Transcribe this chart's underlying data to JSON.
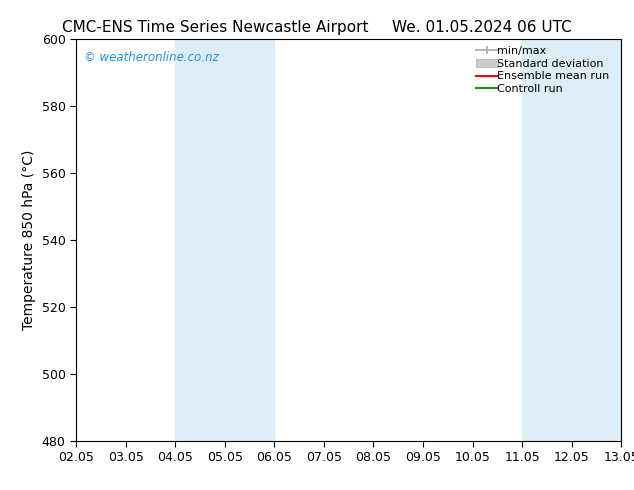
{
  "title_left": "CMC-ENS Time Series Newcastle Airport",
  "title_right": "We. 01.05.2024 06 UTC",
  "ylabel": "Temperature 850 hPa (°C)",
  "ylim": [
    480,
    600
  ],
  "yticks": [
    480,
    500,
    520,
    540,
    560,
    580,
    600
  ],
  "xtick_labels": [
    "02.05",
    "03.05",
    "04.05",
    "05.05",
    "06.05",
    "07.05",
    "08.05",
    "09.05",
    "10.05",
    "11.05",
    "12.05",
    "13.05"
  ],
  "x_positions": [
    2,
    3,
    4,
    5,
    6,
    7,
    8,
    9,
    10,
    11,
    12,
    13
  ],
  "xlim": [
    2,
    13
  ],
  "shaded_regions": [
    {
      "xstart": 4.0,
      "xend": 6.0,
      "color": "#ddeef8"
    },
    {
      "xstart": 11.0,
      "xend": 13.0,
      "color": "#ddeef8"
    }
  ],
  "watermark_text": "© weatheronline.co.nz",
  "watermark_color": "#1e90ff",
  "background_color": "#ffffff",
  "legend_items": [
    {
      "label": "min/max"
    },
    {
      "label": "Standard deviation"
    },
    {
      "label": "Ensemble mean run"
    },
    {
      "label": "Controll run"
    }
  ],
  "legend_line_colors": [
    "#aaaaaa",
    "#cccccc",
    "#ff0000",
    "#228b22"
  ],
  "title_fontsize": 11,
  "axis_label_fontsize": 10,
  "tick_fontsize": 9,
  "legend_fontsize": 8
}
